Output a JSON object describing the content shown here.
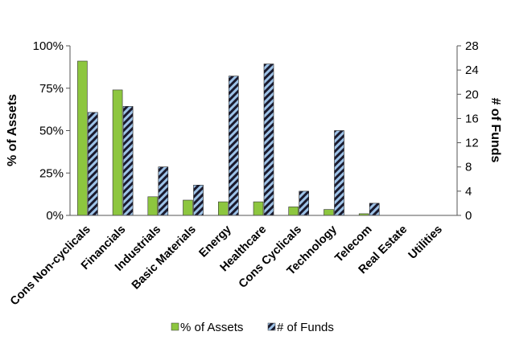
{
  "chart_data": {
    "type": "bar",
    "categories": [
      "Cons Non-cyclicals",
      "Financials",
      "Industrials",
      "Basic Materials",
      "Energy",
      "Healthcare",
      "Cons Cyclicals",
      "Technology",
      "Telecom",
      "Real Estate",
      "Utilities"
    ],
    "series": [
      {
        "name": "% of Assets",
        "axis": "left",
        "color": "#8dc63f",
        "pattern": "solid",
        "values": [
          91,
          74,
          11,
          9,
          8,
          8,
          5,
          3.5,
          1,
          0,
          0
        ]
      },
      {
        "name": "# of Funds",
        "axis": "right",
        "color": "#9ec3e8",
        "pattern": "diagonal-hatch-dark",
        "values": [
          17,
          18,
          8,
          5,
          23,
          25,
          4,
          14,
          2,
          0,
          0
        ]
      }
    ],
    "left_axis": {
      "label": "% of Assets",
      "ylim": [
        0,
        100
      ],
      "ticks": [
        "0%",
        "25%",
        "50%",
        "75%",
        "100%"
      ],
      "tick_values": [
        0,
        25,
        50,
        75,
        100
      ]
    },
    "right_axis": {
      "label": "# of Funds",
      "ylim": [
        0,
        28
      ],
      "ticks": [
        "0",
        "4",
        "8",
        "12",
        "16",
        "20",
        "24",
        "28"
      ],
      "tick_values": [
        0,
        4,
        8,
        12,
        16,
        20,
        24,
        28
      ]
    },
    "grid": false,
    "legend_position": "bottom"
  }
}
